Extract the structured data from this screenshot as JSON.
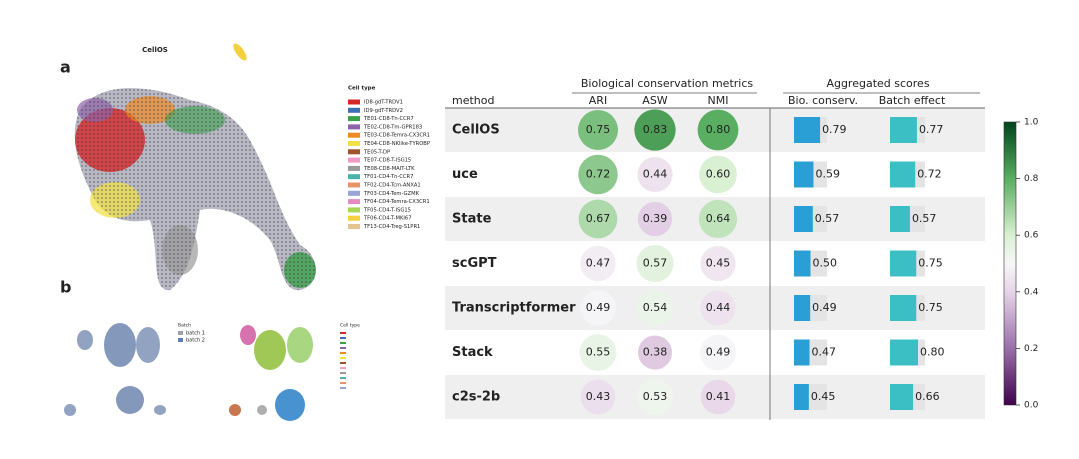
{
  "panel_a": {
    "label": "a",
    "title": "CellOS",
    "legend_title": "Cell type",
    "legend": [
      {
        "name": "ID8-gdT-TRDV1",
        "color": "#d62728"
      },
      {
        "name": "ID9-gdT-TRDV2",
        "color": "#3f6fb5"
      },
      {
        "name": "TE01-CD8-Tn-CCR7",
        "color": "#3aa04a"
      },
      {
        "name": "TE02-CD8-Tm-GPR183",
        "color": "#8e63a8"
      },
      {
        "name": "TE03-CD8-Temra-CX3CR1",
        "color": "#f08a24"
      },
      {
        "name": "TE04-CD8-NKlike-TYROBP",
        "color": "#f2e24a"
      },
      {
        "name": "TE05-T-DP",
        "color": "#a0522d"
      },
      {
        "name": "TE07-CD8-T-ISG15",
        "color": "#f29ac6"
      },
      {
        "name": "TE08-CD8-MAIT-LTK",
        "color": "#9a9a9a"
      },
      {
        "name": "TF01-CD4-Tn-CCR7",
        "color": "#4bb3a8"
      },
      {
        "name": "TF02-CD4-Tcm-ANXA1",
        "color": "#e8946a"
      },
      {
        "name": "TF03-CD4-Tem-GZMK",
        "color": "#9aa3d6"
      },
      {
        "name": "TF04-CD4-Temra-CX3CR1",
        "color": "#e48ac0"
      },
      {
        "name": "TF05-CD4-T-ISG15",
        "color": "#a6d854"
      },
      {
        "name": "TF06-CD4-T-MKI67",
        "color": "#f4d03f"
      },
      {
        "name": "TF13-CD4-Treg-S1PR1",
        "color": "#e5c494"
      }
    ]
  },
  "panel_b": {
    "label": "b",
    "batch_legend_title": "Batch",
    "batch_legend": [
      {
        "name": "batch 1",
        "color": "#9aa0b0"
      },
      {
        "name": "batch 2",
        "color": "#5a7fb5"
      }
    ],
    "celltype_legend_title": "Cell type"
  },
  "table": {
    "group_headers": [
      "Biological conservation metrics",
      "Aggregated scores"
    ],
    "columns": [
      "method",
      "ARI",
      "ASW",
      "NMI",
      "Bio. conserv.",
      "Batch effect"
    ],
    "bar_colors": [
      "#2a9fd6",
      "#3bbfc5"
    ],
    "rows": [
      {
        "method": "CellOS",
        "values": [
          0.75,
          0.83,
          0.8,
          0.79,
          0.77
        ],
        "value_labels": [
          "0.75",
          "0.83",
          "0.80",
          "0.79",
          "0.77"
        ]
      },
      {
        "method": "uce",
        "values": [
          0.72,
          0.44,
          0.6,
          0.59,
          0.72
        ],
        "value_labels": [
          "0.72",
          "0.44",
          "0.60",
          "0.59",
          "0.72"
        ]
      },
      {
        "method": "State",
        "values": [
          0.67,
          0.39,
          0.64,
          0.57,
          0.57
        ],
        "value_labels": [
          "0.67",
          "0.39",
          "0.64",
          "0.57",
          "0.57"
        ]
      },
      {
        "method": "scGPT",
        "values": [
          0.47,
          0.57,
          0.45,
          0.5,
          0.75
        ],
        "value_labels": [
          "0.47",
          "0.57",
          "0.45",
          "0.50",
          "0.75"
        ]
      },
      {
        "method": "Transcriptformer",
        "values": [
          0.49,
          0.54,
          0.44,
          0.49,
          0.75
        ],
        "value_labels": [
          "0.49",
          "0.54",
          "0.44",
          "0.49",
          "0.75"
        ]
      },
      {
        "method": "Stack",
        "values": [
          0.55,
          0.38,
          0.49,
          0.47,
          0.8
        ],
        "value_labels": [
          "0.55",
          "0.38",
          "0.49",
          "0.47",
          "0.80"
        ]
      },
      {
        "method": "c2s-2b",
        "values": [
          0.43,
          0.53,
          0.41,
          0.45,
          0.66
        ],
        "value_labels": [
          "0.43",
          "0.53",
          "0.41",
          "0.45",
          "0.66"
        ]
      }
    ]
  },
  "colorbar": {
    "lim": [
      0,
      1
    ],
    "ticks": [
      {
        "value": 0,
        "label": "0.0"
      },
      {
        "value": 0.2,
        "label": "0.2"
      },
      {
        "value": 0.4,
        "label": "0.4"
      },
      {
        "value": 0.6,
        "label": "0.6"
      },
      {
        "value": 0.8,
        "label": "0.8"
      },
      {
        "value": 1,
        "label": "1.0"
      }
    ]
  }
}
